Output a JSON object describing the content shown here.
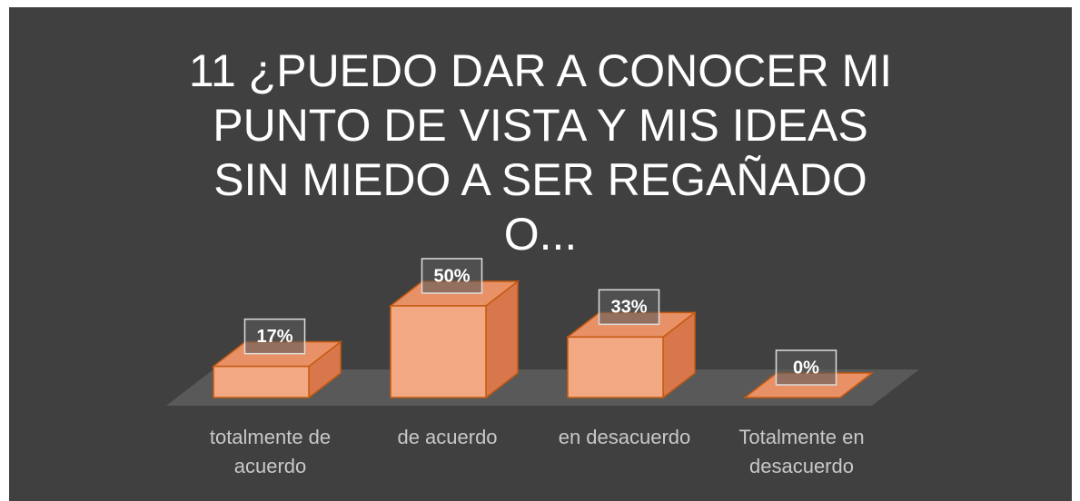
{
  "chart_data": {
    "type": "bar3d",
    "title": "11 ¿PUEDO DAR A CONOCER MI PUNTO DE VISTA Y MIS IDEAS SIN MIEDO A SER REGAÑADO O...",
    "categories": [
      "totalmente de acuerdo",
      "de acuerdo",
      "en desacuerdo",
      "Totalmente en desacuerdo"
    ],
    "values": [
      17,
      50,
      33,
      0
    ],
    "value_labels": [
      "17%",
      "50%",
      "33%",
      "0%"
    ],
    "color": "#f2a882"
  }
}
